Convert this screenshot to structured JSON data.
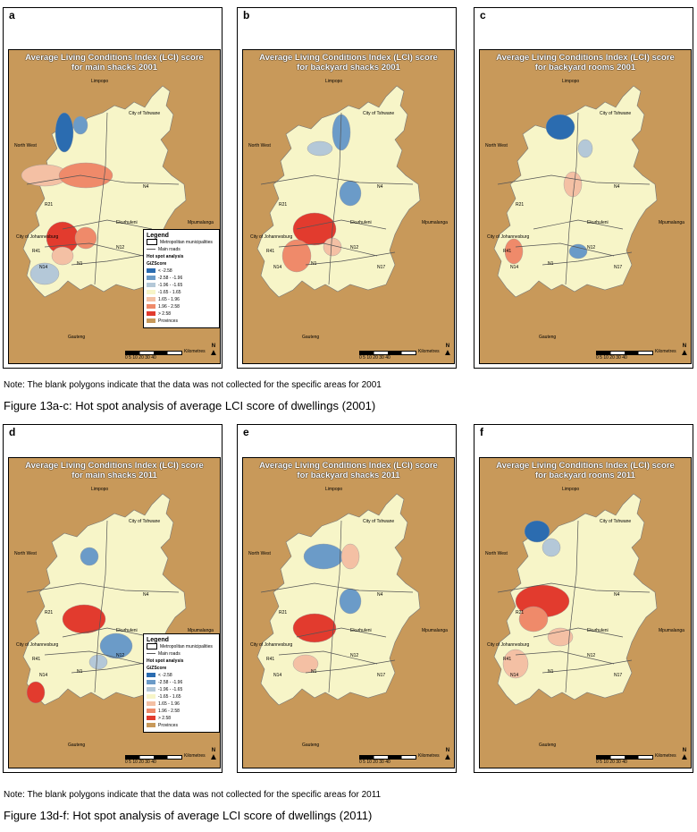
{
  "panels": [
    {
      "label": "a",
      "title": "Average Living Conditions Index (LCI) score\nfor main shacks 2001",
      "legend": true
    },
    {
      "label": "b",
      "title": "Average Living Conditions Index (LCI) score\nfor backyard shacks 2001",
      "legend": false
    },
    {
      "label": "c",
      "title": "Average Living Conditions Index (LCI) score\nfor backyard rooms 2001",
      "legend": false
    },
    {
      "label": "d",
      "title": "Average Living Conditions Index (LCI) score\nfor main shacks 2011",
      "legend": true
    },
    {
      "label": "e",
      "title": "Average Living Conditions Index (LCI) score\nfor backyard shacks 2011",
      "legend": false
    },
    {
      "label": "f",
      "title": "Average Living Conditions Index (LCI) score\nfor backyard rooms 2011",
      "legend": false
    }
  ],
  "places": {
    "limpopo": "Limpopo",
    "tshwane": "City of Tshwane",
    "northwest": "North West",
    "mpumalanga": "Mpumalanga",
    "ekurhuleni": "Ekurhuleni",
    "johannesburg": "City of Johannesburg",
    "gauteng": "Gauteng",
    "n4": "N4",
    "n12": "N12",
    "n17": "N17",
    "r21": "R21",
    "r41": "R41",
    "n1": "N1",
    "n14": "N14",
    "n3": "N3",
    "r59": "R59"
  },
  "legend": {
    "title": "Legend",
    "metro": "Metropolitan municipalities",
    "roads": "Main roads",
    "hotspot": "Hot spot analysis",
    "gizscore": "GiZScore",
    "classes_2001": [
      {
        "label": "< -2.58",
        "color": "#2b6cb0"
      },
      {
        "label": "-2.58 - -1.96",
        "color": "#6b9bc8"
      },
      {
        "label": "-1.96 - -1.65",
        "color": "#b4c8d8"
      },
      {
        "label": "-1.65 - 1.65",
        "color": "#f7f5c8"
      },
      {
        "label": "1.65 - 1.96",
        "color": "#f4c0a4"
      },
      {
        "label": "1.96 - 2.58",
        "color": "#ef8a6a"
      },
      {
        "label": "> 2.58",
        "color": "#e23b2e"
      },
      {
        "label": "Provinces",
        "color": "#c8995a"
      }
    ],
    "classes_2011": [
      {
        "label": "< -2.58",
        "color": "#2b6cb0"
      },
      {
        "label": "-2.58 - -1.96",
        "color": "#6b9bc8"
      },
      {
        "label": "-1.96 - -1.65",
        "color": "#b4c8d8"
      },
      {
        "label": "-1.65 - 1.65",
        "color": "#f7f5c8"
      },
      {
        "label": "1.65 - 1.96",
        "color": "#f4c0a4"
      },
      {
        "label": "1.96 - 2.58",
        "color": "#ef8a6a"
      },
      {
        "label": "> 2.58",
        "color": "#e23b2e"
      },
      {
        "label": "Provinces",
        "color": "#c8995a"
      }
    ]
  },
  "scale": {
    "ticks": "0  5  10     20     30     40",
    "unit": "Kilometres",
    "north": "N"
  },
  "note_2001": "Note: The blank polygons indicate that the data was not collected for the specific areas for 2001",
  "caption_2001": "Figure 13a-c: Hot spot analysis of average LCI score of dwellings (2001)",
  "note_2011": "Note: The blank polygons indicate that the data was not collected for the specific areas for 2011",
  "caption_2011": "Figure 13d-f:     Hot spot analysis of average LCI score of dwellings (2011)",
  "colors": {
    "province": "#c8995a",
    "base": "#f7f5c8",
    "blue_dark": "#2b6cb0",
    "blue_mid": "#6b9bc8",
    "blue_light": "#b4c8d8",
    "red_light": "#f4c0a4",
    "red_mid": "#ef8a6a",
    "red_dark": "#e23b2e"
  }
}
